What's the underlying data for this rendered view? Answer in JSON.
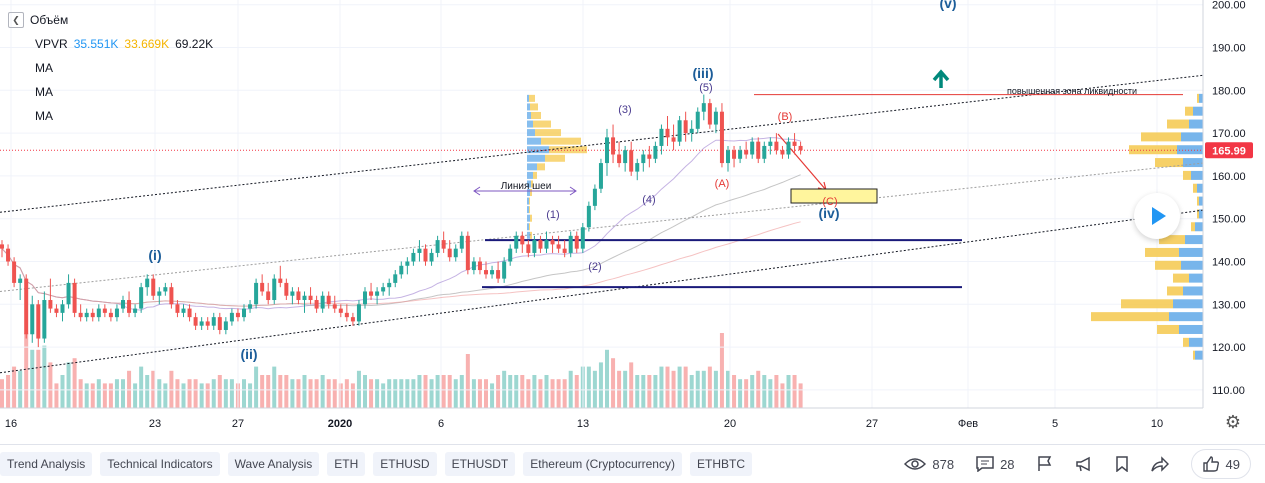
{
  "legend": {
    "main_label": "Объём",
    "vpvr_label": "VPVR",
    "vpvr_values": [
      "35.551K",
      "33.669K",
      "69.22K"
    ],
    "ma_labels": [
      "MA",
      "MA",
      "MA"
    ]
  },
  "chart_data": {
    "type": "candlestick",
    "x_ticks": [
      "16",
      "23",
      "27",
      "2020",
      "6",
      "13",
      "20",
      "27",
      "Фев",
      "5",
      "10"
    ],
    "y_ticks": [
      "110.00",
      "120.00",
      "130.00",
      "140.00",
      "150.00",
      "160.00",
      "170.00",
      "180.00",
      "190.00",
      "200.00"
    ],
    "ylim": [
      105,
      202
    ],
    "current_price": "165.99",
    "candles": [
      [
        144,
        145,
        141,
        143
      ],
      [
        143,
        144,
        139,
        140
      ],
      [
        140,
        141,
        134,
        135
      ],
      [
        135,
        137,
        131,
        136
      ],
      [
        136,
        137,
        122,
        123
      ],
      [
        123,
        132,
        121,
        130
      ],
      [
        130,
        131,
        120,
        122
      ],
      [
        122,
        133,
        121,
        131
      ],
      [
        131,
        136,
        128,
        129
      ],
      [
        129,
        130,
        127,
        128
      ],
      [
        128,
        131,
        126,
        130
      ],
      [
        130,
        137,
        129,
        135
      ],
      [
        135,
        136,
        127,
        128
      ],
      [
        128,
        130,
        126,
        127
      ],
      [
        127,
        129,
        126,
        128
      ],
      [
        128,
        129,
        126,
        127
      ],
      [
        127,
        130,
        126,
        129
      ],
      [
        129,
        130,
        127,
        128
      ],
      [
        128,
        129,
        126,
        127
      ],
      [
        127,
        130,
        126,
        129
      ],
      [
        129,
        132,
        128,
        131
      ],
      [
        131,
        133,
        127,
        128
      ],
      [
        128,
        130,
        127,
        129
      ],
      [
        129,
        135,
        128,
        134
      ],
      [
        134,
        137,
        132,
        136
      ],
      [
        136,
        137,
        131,
        132
      ],
      [
        132,
        134,
        130,
        133
      ],
      [
        133,
        135,
        132,
        134
      ],
      [
        134,
        135,
        129,
        130
      ],
      [
        130,
        131,
        127,
        128
      ],
      [
        128,
        130,
        127,
        129
      ],
      [
        129,
        130,
        126,
        127
      ],
      [
        127,
        128,
        124,
        125
      ],
      [
        125,
        127,
        124,
        126
      ],
      [
        126,
        127,
        124,
        125
      ],
      [
        125,
        128,
        124,
        127
      ],
      [
        127,
        128,
        123,
        124
      ],
      [
        124,
        127,
        123,
        126
      ],
      [
        126,
        129,
        125,
        128
      ],
      [
        128,
        129,
        126,
        127
      ],
      [
        127,
        130,
        126,
        129
      ],
      [
        129,
        131,
        128,
        130
      ],
      [
        130,
        136,
        129,
        135
      ],
      [
        135,
        137,
        132,
        133
      ],
      [
        133,
        135,
        130,
        131
      ],
      [
        131,
        137,
        130,
        136
      ],
      [
        136,
        139,
        134,
        135
      ],
      [
        135,
        136,
        131,
        132
      ],
      [
        132,
        134,
        130,
        133
      ],
      [
        133,
        134,
        130,
        131
      ],
      [
        131,
        133,
        128,
        132
      ],
      [
        132,
        134,
        130,
        131
      ],
      [
        131,
        132,
        128,
        129
      ],
      [
        129,
        133,
        128,
        132
      ],
      [
        132,
        133,
        129,
        130
      ],
      [
        130,
        132,
        128,
        129
      ],
      [
        129,
        130,
        127,
        128
      ],
      [
        128,
        130,
        126,
        127
      ],
      [
        127,
        128,
        125,
        126
      ],
      [
        126,
        131,
        125,
        130
      ],
      [
        130,
        134,
        129,
        133
      ],
      [
        133,
        135,
        131,
        132
      ],
      [
        132,
        134,
        130,
        133
      ],
      [
        133,
        135,
        132,
        134
      ],
      [
        134,
        136,
        132,
        135
      ],
      [
        135,
        138,
        134,
        137
      ],
      [
        137,
        140,
        136,
        139
      ],
      [
        139,
        141,
        137,
        140
      ],
      [
        140,
        143,
        139,
        142
      ],
      [
        142,
        145,
        140,
        143
      ],
      [
        143,
        144,
        139,
        140
      ],
      [
        140,
        143,
        139,
        142
      ],
      [
        142,
        146,
        141,
        145
      ],
      [
        145,
        147,
        142,
        143
      ],
      [
        143,
        145,
        140,
        141
      ],
      [
        141,
        144,
        140,
        143
      ],
      [
        143,
        147,
        142,
        146
      ],
      [
        146,
        147,
        137,
        138
      ],
      [
        138,
        141,
        137,
        140
      ],
      [
        140,
        141,
        137,
        138
      ],
      [
        138,
        140,
        136,
        137
      ],
      [
        137,
        139,
        136,
        138
      ],
      [
        138,
        140,
        135,
        136
      ],
      [
        136,
        141,
        135,
        140
      ],
      [
        140,
        144,
        139,
        143
      ],
      [
        143,
        147,
        142,
        146
      ],
      [
        146,
        147,
        142,
        144
      ],
      [
        144,
        145,
        141,
        142
      ],
      [
        142,
        146,
        141,
        145
      ],
      [
        145,
        146,
        142,
        143
      ],
      [
        143,
        147,
        142,
        145
      ],
      [
        145,
        146,
        142,
        144
      ],
      [
        144,
        146,
        142,
        143
      ],
      [
        143,
        145,
        141,
        142
      ],
      [
        142,
        147,
        141,
        146
      ],
      [
        146,
        147,
        142,
        143
      ],
      [
        143,
        149,
        142,
        148
      ],
      [
        148,
        154,
        147,
        153
      ],
      [
        153,
        158,
        152,
        157
      ],
      [
        157,
        164,
        156,
        163
      ],
      [
        163,
        171,
        160,
        169
      ],
      [
        169,
        172,
        163,
        165
      ],
      [
        165,
        168,
        162,
        163
      ],
      [
        163,
        167,
        161,
        166
      ],
      [
        166,
        168,
        160,
        161
      ],
      [
        161,
        164,
        159,
        163
      ],
      [
        163,
        166,
        161,
        165
      ],
      [
        165,
        167,
        162,
        164
      ],
      [
        164,
        168,
        163,
        167
      ],
      [
        167,
        172,
        165,
        171
      ],
      [
        171,
        174,
        167,
        169
      ],
      [
        169,
        172,
        166,
        168
      ],
      [
        168,
        174,
        167,
        173
      ],
      [
        173,
        175,
        168,
        170
      ],
      [
        170,
        173,
        168,
        171
      ],
      [
        171,
        176,
        170,
        175
      ],
      [
        175,
        179,
        173,
        177
      ],
      [
        177,
        178,
        171,
        172
      ],
      [
        172,
        176,
        170,
        175
      ],
      [
        175,
        177,
        162,
        163
      ],
      [
        163,
        167,
        161,
        166
      ],
      [
        166,
        167,
        162,
        164
      ],
      [
        164,
        167,
        163,
        166
      ],
      [
        166,
        168,
        164,
        165
      ],
      [
        165,
        169,
        164,
        168
      ],
      [
        168,
        169,
        163,
        164
      ],
      [
        164,
        168,
        163,
        167
      ],
      [
        167,
        169,
        165,
        168
      ],
      [
        168,
        170,
        165,
        166
      ],
      [
        166,
        167,
        164,
        165
      ],
      [
        165,
        169,
        164,
        168
      ],
      [
        168,
        170,
        165,
        167
      ],
      [
        167,
        168,
        165,
        166
      ]
    ]
  },
  "annotations": {
    "wave_labels": [
      "(i)",
      "(ii)",
      "(iii)",
      "(iv)",
      "(v)"
    ],
    "sub_labels": [
      "(1)",
      "(2)",
      "(3)",
      "(4)",
      "(5)"
    ],
    "correction_labels": [
      "(A)",
      "(B)",
      "(C)"
    ],
    "neckline": "Линия шеи",
    "liquidity_zone": "повышенная зона ликвидности"
  },
  "colors": {
    "up": "#26a69a",
    "down": "#ef5350",
    "wave_label": "#1c5d99",
    "trend_line": "#131722",
    "horizontal_level": "#1a1a7a",
    "liquidity_line": "#e53935",
    "current_price": "#f23645",
    "vpvr_up": "#5fa8e8",
    "vpvr_down": "#f5c84c"
  },
  "tags": [
    "Trend Analysis",
    "Technical Indicators",
    "Wave Analysis",
    "ETH",
    "ETHUSD",
    "ETHUSDT",
    "Ethereum (Cryptocurrency)",
    "ETHBTC"
  ],
  "stats": {
    "views": "878",
    "comments": "28",
    "likes": "49"
  }
}
